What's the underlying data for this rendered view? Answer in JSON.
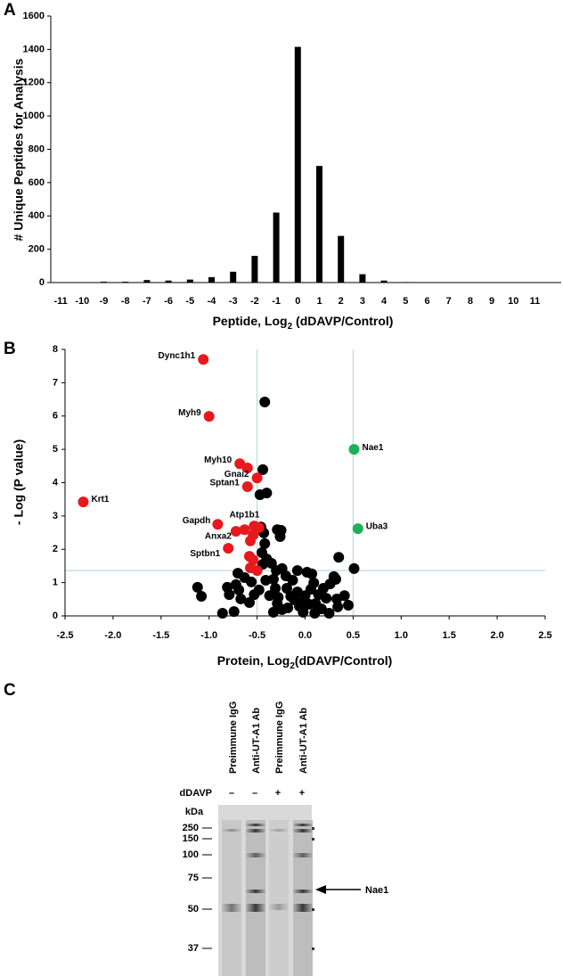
{
  "chart_data": [
    {
      "type": "bar",
      "panel": "A",
      "ylabel": "# Unique Peptides for Analysis",
      "xlabel_parts": [
        "Peptide, Log",
        "2",
        " (dDAVP/Control)"
      ],
      "categories": [
        "-11",
        "-10",
        "-9",
        "-8",
        "-7",
        "-6",
        "-5",
        "-4",
        "-3",
        "-2",
        "-1",
        "0",
        "1",
        "2",
        "3",
        "4",
        "5",
        "6",
        "7",
        "8",
        "9",
        "10",
        "11"
      ],
      "values": [
        0,
        0,
        5,
        5,
        15,
        12,
        18,
        32,
        65,
        160,
        420,
        1415,
        700,
        280,
        50,
        12,
        3,
        0,
        0,
        0,
        0,
        0,
        0
      ],
      "color": "#000000",
      "ylim": [
        0,
        1600
      ],
      "yticks": [
        0,
        200,
        400,
        600,
        800,
        1000,
        1200,
        1400,
        1600
      ]
    },
    {
      "type": "scatter",
      "panel": "B",
      "ylabel": "- Log (P value)",
      "xlabel_parts": [
        "Protein, Log",
        "2",
        "(dDAVP/Control)"
      ],
      "xlim": [
        -2.5,
        2.5
      ],
      "xticks": [
        -2.5,
        {
          "value": -2,
          "label": "-2.0"
        },
        -1.5,
        {
          "value": -1,
          "label": "-1.0"
        },
        -0.5,
        {
          "value": 0,
          "label": "0.0"
        },
        0.5,
        {
          "value": 1,
          "label": "1.0"
        },
        1.5,
        {
          "value": 2,
          "label": "2.0"
        },
        2.5
      ],
      "ylim": [
        0,
        8
      ],
      "yticks": [
        0,
        1,
        2,
        3,
        4,
        5,
        6,
        7,
        8
      ],
      "vlines": [
        -0.5,
        0.5
      ],
      "hline": 1.36,
      "line_color": "#a8d4e6",
      "series": [
        {
          "color": "#e8191c",
          "x": [
            -1.06,
            -1.0,
            -0.68,
            -0.6,
            -0.5,
            -0.6,
            -2.31,
            -0.91,
            -0.72,
            -0.63,
            -0.53,
            -0.48,
            -0.54,
            -0.57,
            -0.8,
            -0.58,
            -0.54,
            -0.57,
            -0.5
          ],
          "y": [
            7.7,
            5.99,
            4.57,
            4.44,
            4.14,
            3.88,
            3.42,
            2.75,
            2.54,
            2.59,
            2.7,
            2.65,
            2.43,
            2.25,
            2.03,
            1.79,
            1.68,
            1.44,
            1.36
          ],
          "labels": [
            "Dync1h1",
            "Myh9",
            "Myh10",
            null,
            "Gnai2",
            "Sptan1",
            "Krt1",
            "Gapdh",
            "Anxa2",
            null,
            "Atp1b1",
            null,
            null,
            null,
            "Sptbn1",
            null,
            null,
            null,
            null
          ]
        },
        {
          "color": "#1db15a",
          "x": [
            0.51,
            0.55
          ],
          "y": [
            5.0,
            2.62
          ],
          "labels": [
            "Nae1",
            "Uba3"
          ]
        },
        {
          "color": "#000000",
          "x": [
            -0.42,
            -0.44,
            -0.47,
            -0.4,
            -0.46,
            -0.43,
            -0.29,
            -0.25,
            -0.26,
            -0.42,
            -0.45,
            -0.4,
            -0.35,
            -0.44,
            -0.3,
            -0.24,
            -0.33,
            -0.41,
            -0.31,
            -0.37,
            -0.28,
            -0.48,
            -0.53,
            -0.58,
            -0.69,
            -0.72,
            -0.67,
            -0.79,
            -0.81,
            -0.74,
            -0.86,
            -1.12,
            -1.08,
            -0.7,
            -0.63,
            -0.56,
            -0.2,
            -0.19,
            -0.13,
            -0.08,
            -0.11,
            -0.06,
            0.0,
            0.04,
            0.09,
            0.14,
            0.17,
            0.22,
            0.1,
            -0.02,
            -0.18,
            -0.24,
            -0.29,
            -0.33,
            -0.08,
            0.02,
            0.06,
            0.19,
            0.26,
            0.33,
            0.41,
            0.25,
            0.34,
            0.45,
            0.51,
            0.35,
            0.3,
            0.32,
            0.07,
            0.11,
            -0.01,
            -0.15
          ],
          "y": [
            6.42,
            4.39,
            3.64,
            3.69,
            2.67,
            2.49,
            2.59,
            2.57,
            2.38,
            2.17,
            1.9,
            1.71,
            1.58,
            1.55,
            1.36,
            1.42,
            1.1,
            1.07,
            0.83,
            0.61,
            0.56,
            0.78,
            0.64,
            0.4,
            0.78,
            0.94,
            0.51,
            0.64,
            0.86,
            0.13,
            0.08,
            0.86,
            0.59,
            1.28,
            1.15,
            1.02,
            1.2,
            0.83,
            1.07,
            0.72,
            0.48,
            0.29,
            0.61,
            0.35,
            0.99,
            0.64,
            0.21,
            0.53,
            0.08,
            0.11,
            0.24,
            0.19,
            0.37,
            0.11,
            1.36,
            1.31,
            0.8,
            0.83,
            0.96,
            0.51,
            0.61,
            0.08,
            0.27,
            0.32,
            1.42,
            1.76,
            1.18,
            1.1,
            1.26,
            0.37,
            0.48,
            0.59
          ]
        }
      ]
    }
  ],
  "blot": {
    "panel": "C",
    "lanes": [
      "Preimmune IgG",
      "Anti-UT-A1 Ab",
      "Preimmune IgG",
      "Anti-UT-A1 Ab"
    ],
    "treatment": "dDAVP",
    "signs": [
      "–",
      "–",
      "+",
      "+"
    ],
    "unit": "kDa",
    "markers": [
      250,
      150,
      100,
      75,
      50,
      37
    ],
    "arrow_label": "Nae1"
  }
}
